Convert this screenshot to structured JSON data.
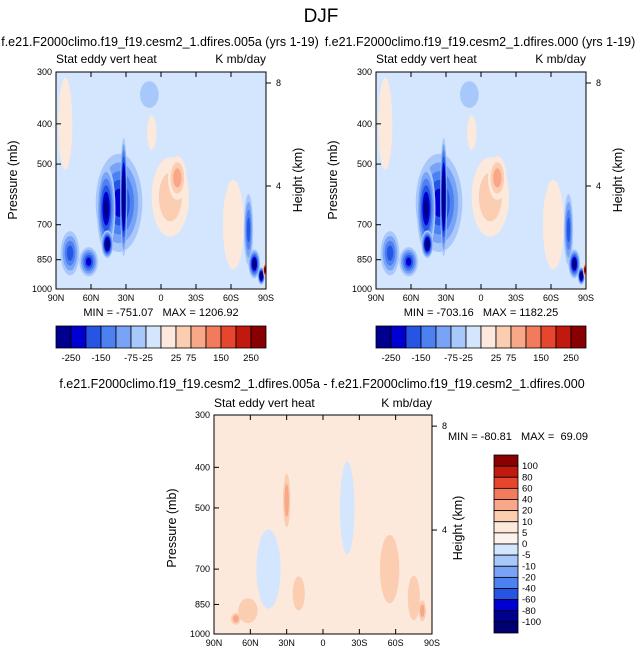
{
  "figure_title": "DJF",
  "colors": {
    "abs": [
      "#00008f",
      "#0000d2",
      "#2655e6",
      "#4d80f0",
      "#78a3f7",
      "#a8c8fb",
      "#d3e6fe",
      "#fde9dc",
      "#fbcdb1",
      "#f8a788",
      "#f27b5c",
      "#e6452e",
      "#c2190e",
      "#880000"
    ],
    "diff": [
      "#00008f",
      "#0000d2",
      "#2655e6",
      "#4d80f0",
      "#78a3f7",
      "#a8c8fb",
      "#d3e6fe",
      "#fde9dc",
      "#fbcdb1",
      "#f8a788",
      "#f27b5c",
      "#e6452e",
      "#c2190e",
      "#880000"
    ]
  },
  "chart_data": [
    {
      "type": "heatmap",
      "title": "f.e21.F2000climo.f19_f19.cesm2_1.dfires.005a (yrs 1-19)",
      "left_label": "Stat eddy vert heat",
      "right_label": "K mb/day",
      "ylabel": "Pressure (mb)",
      "y2label": "Height (km)",
      "xticks": [
        "90N",
        "60N",
        "30N",
        "0",
        "30S",
        "60S",
        "90S"
      ],
      "yticks": [
        "300",
        "400",
        "500",
        "700",
        "850",
        "1000"
      ],
      "y2ticks": [
        "8",
        "4"
      ],
      "min_max": "MIN = -751.07   MAX = 1206.92",
      "levels": [
        "-250",
        "-150",
        "-75",
        "-25",
        "25",
        "75",
        "150",
        "250"
      ],
      "colorbar": "horizontal",
      "blobs": [
        {
          "lat": 36,
          "p": 620,
          "wlat": 20,
          "wp": 330,
          "v": -5
        },
        {
          "lat": 47,
          "p": 640,
          "wlat": 8,
          "wp": 300,
          "v": -6
        },
        {
          "lat": 32,
          "p": 600,
          "wlat": 3,
          "wp": 380,
          "v": -9
        },
        {
          "lat": 46,
          "p": 780,
          "wlat": 5,
          "wp": 120,
          "v": -8
        },
        {
          "lat": 62,
          "p": 860,
          "wlat": 8,
          "wp": 140,
          "v": -5
        },
        {
          "lat": -8,
          "p": 600,
          "wlat": 16,
          "wp": 260,
          "v": 2
        },
        {
          "lat": -14,
          "p": 540,
          "wlat": 8,
          "wp": 130,
          "v": 3
        },
        {
          "lat": -62,
          "p": 700,
          "wlat": 9,
          "wp": 340,
          "v": 1
        },
        {
          "lat": 82,
          "p": 400,
          "wlat": 6,
          "wp": 200,
          "v": 1
        },
        {
          "lat": 78,
          "p": 820,
          "wlat": 8,
          "wp": 200,
          "v": -4
        },
        {
          "lat": -75,
          "p": 720,
          "wlat": 4,
          "wp": 280,
          "v": -4
        },
        {
          "lat": -80,
          "p": 870,
          "wlat": 5,
          "wp": 140,
          "v": -7
        },
        {
          "lat": -86,
          "p": 930,
          "wlat": 3,
          "wp": 90,
          "v": -9
        },
        {
          "lat": -89,
          "p": 900,
          "wlat": 1.5,
          "wp": 70,
          "v": 9
        },
        {
          "lat": 10,
          "p": 340,
          "wlat": 8,
          "wp": 50,
          "v": -1
        },
        {
          "lat": 8,
          "p": 420,
          "wlat": 4,
          "wp": 80,
          "v": 1
        }
      ]
    },
    {
      "type": "heatmap",
      "title": "f.e21.F2000climo.f19_f19.cesm2_1.dfires.000 (yrs 1-19)",
      "left_label": "Stat eddy vert heat",
      "right_label": "K mb/day",
      "ylabel": "Pressure (mb)",
      "y2label": "Height (km)",
      "xticks": [
        "90N",
        "60N",
        "30N",
        "0",
        "30S",
        "60S",
        "90S"
      ],
      "yticks": [
        "300",
        "400",
        "500",
        "700",
        "850",
        "1000"
      ],
      "y2ticks": [
        "8",
        "4"
      ],
      "min_max": "MIN = -703.16   MAX = 1182.25",
      "levels": [
        "-250",
        "-150",
        "-75",
        "-25",
        "25",
        "75",
        "150",
        "250"
      ],
      "colorbar": "horizontal",
      "blobs": [
        {
          "lat": 36,
          "p": 620,
          "wlat": 20,
          "wp": 330,
          "v": -5
        },
        {
          "lat": 47,
          "p": 640,
          "wlat": 8,
          "wp": 300,
          "v": -6
        },
        {
          "lat": 32,
          "p": 600,
          "wlat": 3,
          "wp": 380,
          "v": -9
        },
        {
          "lat": 46,
          "p": 780,
          "wlat": 5,
          "wp": 120,
          "v": -8
        },
        {
          "lat": 62,
          "p": 860,
          "wlat": 8,
          "wp": 140,
          "v": -5
        },
        {
          "lat": -8,
          "p": 600,
          "wlat": 16,
          "wp": 260,
          "v": 2
        },
        {
          "lat": -14,
          "p": 540,
          "wlat": 8,
          "wp": 130,
          "v": 3
        },
        {
          "lat": -62,
          "p": 700,
          "wlat": 9,
          "wp": 340,
          "v": 1
        },
        {
          "lat": 82,
          "p": 400,
          "wlat": 6,
          "wp": 200,
          "v": 1
        },
        {
          "lat": 78,
          "p": 820,
          "wlat": 8,
          "wp": 200,
          "v": -4
        },
        {
          "lat": -75,
          "p": 720,
          "wlat": 4,
          "wp": 280,
          "v": -4
        },
        {
          "lat": -80,
          "p": 870,
          "wlat": 5,
          "wp": 140,
          "v": -7
        },
        {
          "lat": -86,
          "p": 930,
          "wlat": 3,
          "wp": 90,
          "v": -9
        },
        {
          "lat": -89,
          "p": 900,
          "wlat": 1.5,
          "wp": 70,
          "v": 8
        },
        {
          "lat": 10,
          "p": 340,
          "wlat": 8,
          "wp": 50,
          "v": -1
        },
        {
          "lat": 8,
          "p": 420,
          "wlat": 4,
          "wp": 80,
          "v": 1
        }
      ]
    },
    {
      "type": "heatmap",
      "title": "f.e21.F2000climo.f19_f19.cesm2_1.dfires.005a - f.e21.F2000climo.f19_f19.cesm2_1.dfires.000",
      "left_label": "Stat eddy vert heat",
      "right_label": "K mb/day",
      "ylabel": "Pressure (mb)",
      "y2label": "Height (km)",
      "xticks": [
        "90N",
        "60N",
        "30N",
        "0",
        "30S",
        "60S",
        "90S"
      ],
      "yticks": [
        "300",
        "400",
        "500",
        "700",
        "850",
        "1000"
      ],
      "y2ticks": [
        "8",
        "4"
      ],
      "min_max": "MIN = -80.81   MAX =  69.09",
      "levels": [
        "100",
        "80",
        "60",
        "40",
        "20",
        "10",
        "5",
        "0",
        "-5",
        "-10",
        "-20",
        "-40",
        "-60",
        "-80",
        "-100"
      ],
      "colorbar": "vertical",
      "blobs": [
        {
          "lat": 30,
          "p": 480,
          "wlat": 3,
          "wp": 140,
          "v": 2
        },
        {
          "lat": 62,
          "p": 880,
          "wlat": 8,
          "wp": 120,
          "v": 1
        },
        {
          "lat": 72,
          "p": 920,
          "wlat": 4,
          "wp": 60,
          "v": 2
        },
        {
          "lat": -55,
          "p": 700,
          "wlat": 8,
          "wp": 260,
          "v": 1
        },
        {
          "lat": -75,
          "p": 820,
          "wlat": 5,
          "wp": 200,
          "v": 1
        },
        {
          "lat": -82,
          "p": 880,
          "wlat": 3,
          "wp": 100,
          "v": 2
        },
        {
          "lat": 45,
          "p": 700,
          "wlat": 10,
          "wp": 300,
          "v": -1
        },
        {
          "lat": -20,
          "p": 500,
          "wlat": 6,
          "wp": 250,
          "v": -1
        },
        {
          "lat": 20,
          "p": 800,
          "wlat": 5,
          "wp": 150,
          "v": 1
        }
      ]
    }
  ]
}
